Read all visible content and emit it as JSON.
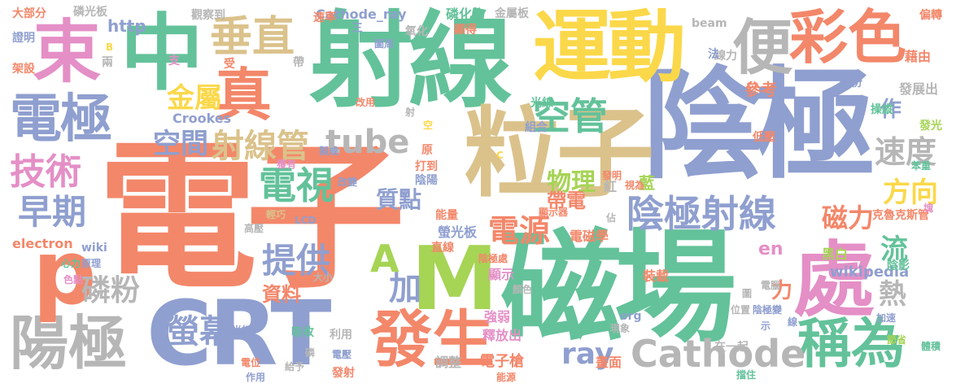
{
  "palette": {
    "orange": "#f3876a",
    "green": "#63c29a",
    "blue": "#8f9fcf",
    "pink": "#e48fc6",
    "lime": "#a6d455",
    "yellow": "#fbd84a",
    "tan": "#dbc28b",
    "gray": "#b6b6b6"
  },
  "words": [
    "電子",
    "陰極",
    "射線",
    "磁場",
    "粒子",
    "運動",
    "中",
    "CRT",
    "M",
    "電極",
    "束",
    "彩色",
    "便",
    "處",
    "陽極",
    "發生",
    "稱為",
    "p",
    "真",
    "垂直",
    "陰極射線",
    "空管",
    "電視",
    "技術",
    "早期",
    "tube",
    "Cathode",
    "射線管",
    "空間",
    "金屬",
    "速度",
    "方向",
    "提供",
    "電源",
    "螢幕",
    "ray",
    "加",
    "物理",
    "磷粉",
    "質點",
    "帶電",
    "A",
    "流",
    "磁力",
    "熱",
    "力",
    "en",
    "參考",
    "作",
    "資料",
    "螢光板",
    "wikipedia",
    "黑白",
    "電子槍",
    "調整",
    "強弱",
    "釋放出",
    "顯示",
    "發展出",
    "藍",
    "紅",
    "電磁學",
    "畫面",
    "http",
    "Cathode_ray",
    "磷化物",
    "金屬板",
    "觀察到",
    "氧化",
    "beam",
    "Crookes",
    "electron",
    "wiki",
    "org",
    "LCD",
    "直線",
    "能量",
    "陰極處",
    "裝載",
    "低壓",
    "操縱",
    "發光",
    "苯重",
    "克魯克斯管",
    "陰影",
    "加速",
    "節省",
    "體積",
    "偏轉",
    "藉由",
    "線力",
    "部份",
    "法",
    "圖周",
    "三",
    "顯得",
    "速率",
    "改用",
    "組合",
    "光線",
    "磷光板",
    "大部分",
    "證明",
    "架設",
    "兩",
    "支",
    "受",
    "帶",
    "原",
    "打到",
    "陰陽",
    "獲有",
    "製成",
    "改變",
    "輕巧",
    "高壓",
    "心力",
    "原理",
    "色點",
    "大小",
    "吸收",
    "利用",
    "光板",
    "電位",
    "作用",
    "給予",
    "磷",
    "電壓",
    "發射",
    "能源",
    "現象",
    "在一起",
    "擋住",
    "圖",
    "位置",
    "陰極變",
    "示",
    "線",
    "電腦",
    "佔",
    "發明",
    "視為",
    "顯示器",
    "顏色",
    "射",
    "空",
    "C",
    "B",
    "塊"
  ]
}
